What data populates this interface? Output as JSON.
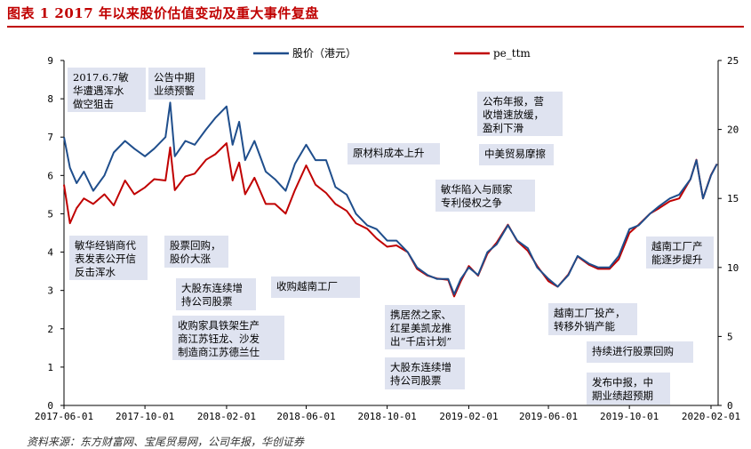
{
  "figure": {
    "title": "图表 1   2017 年以来股价估值变动及重大事件复盘",
    "source": "资料来源：东方财富网、宝尾贸易网，公司年报，华创证券"
  },
  "chart_data": {
    "type": "line",
    "x_ticks": [
      "2017-06-01",
      "2017-10-01",
      "2018-02-01",
      "2018-06-01",
      "2018-10-01",
      "2019-02-01",
      "2019-06-01",
      "2019-10-01",
      "2020-02-01"
    ],
    "y_left": {
      "range": [
        0,
        9
      ],
      "ticks": [
        "0",
        "1",
        "2",
        "3",
        "4",
        "5",
        "6",
        "7",
        "8",
        "9"
      ]
    },
    "y_right": {
      "range": [
        0,
        25
      ],
      "ticks": [
        "0",
        "5",
        "10",
        "15",
        "20",
        "25"
      ]
    },
    "colors": {
      "price": "#1f4e8c",
      "pe": "#c00000"
    },
    "series": [
      {
        "name": "股价（港元）",
        "axis": "left",
        "points": [
          [
            "2017-06-01",
            7.0
          ],
          [
            "2017-06-10",
            6.2
          ],
          [
            "2017-06-20",
            5.8
          ],
          [
            "2017-07-01",
            6.1
          ],
          [
            "2017-07-15",
            5.6
          ],
          [
            "2017-08-01",
            6.0
          ],
          [
            "2017-08-15",
            6.6
          ],
          [
            "2017-09-01",
            6.9
          ],
          [
            "2017-09-15",
            6.7
          ],
          [
            "2017-10-01",
            6.5
          ],
          [
            "2017-10-15",
            6.7
          ],
          [
            "2017-11-01",
            7.0
          ],
          [
            "2017-11-08",
            7.9
          ],
          [
            "2017-11-15",
            6.5
          ],
          [
            "2017-12-01",
            6.9
          ],
          [
            "2017-12-15",
            6.8
          ],
          [
            "2018-01-01",
            7.2
          ],
          [
            "2018-01-15",
            7.5
          ],
          [
            "2018-02-01",
            7.8
          ],
          [
            "2018-02-10",
            6.8
          ],
          [
            "2018-02-20",
            7.4
          ],
          [
            "2018-03-01",
            6.4
          ],
          [
            "2018-03-15",
            6.9
          ],
          [
            "2018-04-01",
            6.1
          ],
          [
            "2018-04-15",
            5.9
          ],
          [
            "2018-05-01",
            5.6
          ],
          [
            "2018-05-15",
            6.3
          ],
          [
            "2018-06-01",
            6.8
          ],
          [
            "2018-06-15",
            6.4
          ],
          [
            "2018-07-01",
            6.4
          ],
          [
            "2018-07-15",
            5.7
          ],
          [
            "2018-08-01",
            5.5
          ],
          [
            "2018-08-15",
            5.0
          ],
          [
            "2018-09-01",
            4.7
          ],
          [
            "2018-09-15",
            4.6
          ],
          [
            "2018-10-01",
            4.3
          ],
          [
            "2018-10-15",
            4.3
          ],
          [
            "2018-11-01",
            4.0
          ],
          [
            "2018-11-15",
            3.6
          ],
          [
            "2018-12-01",
            3.4
          ],
          [
            "2018-12-15",
            3.3
          ],
          [
            "2019-01-01",
            3.3
          ],
          [
            "2019-01-10",
            2.9
          ],
          [
            "2019-01-20",
            3.3
          ],
          [
            "2019-02-01",
            3.6
          ],
          [
            "2019-02-15",
            3.4
          ],
          [
            "2019-03-01",
            4.0
          ],
          [
            "2019-03-15",
            4.2
          ],
          [
            "2019-04-01",
            4.7
          ],
          [
            "2019-04-15",
            4.3
          ],
          [
            "2019-05-01",
            4.1
          ],
          [
            "2019-05-15",
            3.6
          ],
          [
            "2019-06-01",
            3.3
          ],
          [
            "2019-06-15",
            3.1
          ],
          [
            "2019-07-01",
            3.4
          ],
          [
            "2019-07-15",
            3.9
          ],
          [
            "2019-08-01",
            3.7
          ],
          [
            "2019-08-15",
            3.6
          ],
          [
            "2019-09-01",
            3.6
          ],
          [
            "2019-09-15",
            3.9
          ],
          [
            "2019-10-01",
            4.6
          ],
          [
            "2019-10-15",
            4.7
          ],
          [
            "2019-11-01",
            5.0
          ],
          [
            "2019-11-15",
            5.2
          ],
          [
            "2019-12-01",
            5.4
          ],
          [
            "2019-12-15",
            5.5
          ],
          [
            "2020-01-01",
            5.9
          ],
          [
            "2020-01-10",
            6.4
          ],
          [
            "2020-01-20",
            5.4
          ],
          [
            "2020-02-01",
            6.0
          ],
          [
            "2020-02-10",
            6.3
          ]
        ]
      },
      {
        "name": "pe_ttm",
        "axis": "right",
        "points": [
          [
            "2017-06-01",
            16.0
          ],
          [
            "2017-06-10",
            13.2
          ],
          [
            "2017-06-20",
            14.3
          ],
          [
            "2017-07-01",
            15.0
          ],
          [
            "2017-07-15",
            14.6
          ],
          [
            "2017-08-01",
            15.3
          ],
          [
            "2017-08-15",
            14.5
          ],
          [
            "2017-09-01",
            16.3
          ],
          [
            "2017-09-15",
            15.3
          ],
          [
            "2017-10-01",
            15.8
          ],
          [
            "2017-10-15",
            16.4
          ],
          [
            "2017-11-01",
            16.3
          ],
          [
            "2017-11-08",
            18.7
          ],
          [
            "2017-11-15",
            15.6
          ],
          [
            "2017-12-01",
            16.6
          ],
          [
            "2017-12-15",
            16.8
          ],
          [
            "2018-01-01",
            17.8
          ],
          [
            "2018-01-15",
            18.2
          ],
          [
            "2018-02-01",
            19.0
          ],
          [
            "2018-02-10",
            16.3
          ],
          [
            "2018-02-20",
            17.6
          ],
          [
            "2018-03-01",
            15.3
          ],
          [
            "2018-03-15",
            16.5
          ],
          [
            "2018-04-01",
            14.6
          ],
          [
            "2018-04-15",
            14.6
          ],
          [
            "2018-05-01",
            13.9
          ],
          [
            "2018-05-15",
            15.6
          ],
          [
            "2018-06-01",
            17.4
          ],
          [
            "2018-06-15",
            16.0
          ],
          [
            "2018-07-01",
            15.4
          ],
          [
            "2018-07-15",
            14.6
          ],
          [
            "2018-08-01",
            14.1
          ],
          [
            "2018-08-15",
            13.2
          ],
          [
            "2018-09-01",
            12.8
          ],
          [
            "2018-09-15",
            12.1
          ],
          [
            "2018-10-01",
            11.5
          ],
          [
            "2018-10-15",
            11.6
          ],
          [
            "2018-11-01",
            11.1
          ],
          [
            "2018-11-15",
            9.9
          ],
          [
            "2018-12-01",
            9.4
          ],
          [
            "2018-12-15",
            9.2
          ],
          [
            "2019-01-01",
            9.1
          ],
          [
            "2019-01-10",
            7.9
          ],
          [
            "2019-01-20",
            9.0
          ],
          [
            "2019-02-01",
            10.1
          ],
          [
            "2019-02-15",
            9.4
          ],
          [
            "2019-03-01",
            11.0
          ],
          [
            "2019-03-15",
            11.8
          ],
          [
            "2019-04-01",
            13.1
          ],
          [
            "2019-04-15",
            11.9
          ],
          [
            "2019-05-01",
            11.2
          ],
          [
            "2019-05-15",
            10.1
          ],
          [
            "2019-06-01",
            9.0
          ],
          [
            "2019-06-15",
            8.6
          ],
          [
            "2019-07-01",
            9.5
          ],
          [
            "2019-07-15",
            10.8
          ],
          [
            "2019-08-01",
            10.2
          ],
          [
            "2019-08-15",
            9.9
          ],
          [
            "2019-09-01",
            9.9
          ],
          [
            "2019-09-15",
            10.6
          ],
          [
            "2019-10-01",
            12.5
          ],
          [
            "2019-10-15",
            13.1
          ],
          [
            "2019-11-01",
            13.9
          ],
          [
            "2019-11-15",
            14.3
          ],
          [
            "2019-12-01",
            14.8
          ],
          [
            "2019-12-15",
            15.0
          ],
          [
            "2020-01-01",
            16.4
          ],
          [
            "2020-01-10",
            17.8
          ],
          [
            "2020-01-20",
            15.0
          ],
          [
            "2020-02-01",
            16.7
          ],
          [
            "2020-02-10",
            17.5
          ]
        ]
      }
    ],
    "annotations": [
      {
        "lines": [
          "2017.6.7敏",
          "华遭遇浑水",
          "做空狙击"
        ]
      },
      {
        "lines": [
          "公告中期",
          "业绩预警"
        ]
      },
      {
        "lines": [
          "原材料成本上升"
        ]
      },
      {
        "lines": [
          "公布年报，营",
          "收增速放缓，",
          "盈利下滑"
        ]
      },
      {
        "lines": [
          "中美贸易摩擦"
        ]
      },
      {
        "lines": [
          "敏华陷入与顾家",
          "专利侵权之争"
        ]
      },
      {
        "lines": [
          "敏华经销商代",
          "表发表公开信",
          "反击浑水"
        ]
      },
      {
        "lines": [
          "股票回购，",
          "股价大涨"
        ]
      },
      {
        "lines": [
          "大股东连续增",
          "持公司股票"
        ]
      },
      {
        "lines": [
          "收购越南工厂"
        ]
      },
      {
        "lines": [
          "收购家具铁架生产",
          "商江苏钰龙、沙发",
          "制造商江苏德兰仕"
        ]
      },
      {
        "lines": [
          "携居然之家、",
          "红星美凯龙推",
          "出“千店计划”"
        ]
      },
      {
        "lines": [
          "大股东连续增",
          "持公司股票"
        ]
      },
      {
        "lines": [
          "越南工厂投产，",
          "转移外销产能"
        ]
      },
      {
        "lines": [
          "持续进行股票回购"
        ]
      },
      {
        "lines": [
          "发布中报，中",
          "期业绩超预期"
        ]
      },
      {
        "lines": [
          "越南工厂产",
          "能逐步提升"
        ]
      }
    ]
  }
}
